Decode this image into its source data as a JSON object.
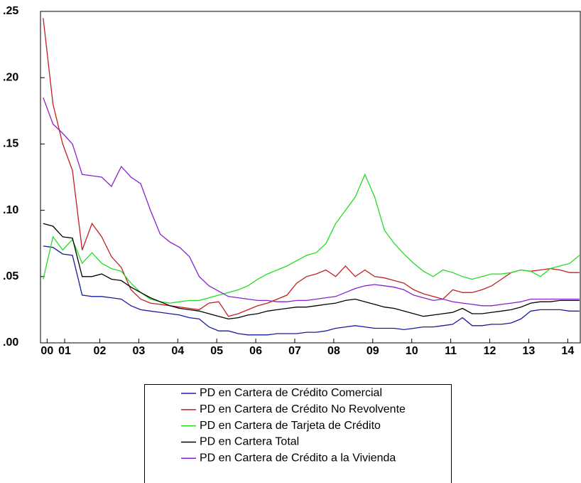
{
  "chart_data": {
    "type": "line",
    "x": [
      2001.0,
      2001.25,
      2001.5,
      2001.75,
      2002.0,
      2002.25,
      2002.5,
      2002.75,
      2003.0,
      2003.25,
      2003.5,
      2003.75,
      2004.0,
      2004.25,
      2004.5,
      2004.75,
      2005.0,
      2005.25,
      2005.5,
      2005.75,
      2006.0,
      2006.25,
      2006.5,
      2006.75,
      2007.0,
      2007.25,
      2007.5,
      2007.75,
      2008.0,
      2008.25,
      2008.5,
      2008.75,
      2009.0,
      2009.25,
      2009.5,
      2009.75,
      2010.0,
      2010.25,
      2010.5,
      2010.75,
      2011.0,
      2011.25,
      2011.5,
      2011.75,
      2012.0,
      2012.25,
      2012.5,
      2012.75,
      2013.0,
      2013.25,
      2013.5,
      2013.75,
      2014.0,
      2014.25,
      2014.5,
      2014.75
    ],
    "series": [
      {
        "name": "PD en Cartera de Crédito Comercial",
        "color": "#1a1aa0",
        "values": [
          0.073,
          0.072,
          0.067,
          0.066,
          0.036,
          0.035,
          0.035,
          0.034,
          0.033,
          0.028,
          0.025,
          0.024,
          0.023,
          0.022,
          0.021,
          0.019,
          0.018,
          0.012,
          0.009,
          0.009,
          0.007,
          0.006,
          0.006,
          0.006,
          0.007,
          0.007,
          0.007,
          0.008,
          0.008,
          0.009,
          0.011,
          0.012,
          0.013,
          0.012,
          0.011,
          0.011,
          0.011,
          0.01,
          0.011,
          0.012,
          0.012,
          0.013,
          0.014,
          0.019,
          0.013,
          0.013,
          0.014,
          0.014,
          0.015,
          0.018,
          0.024,
          0.025,
          0.025,
          0.025,
          0.024,
          0.024
        ]
      },
      {
        "name": "PD en Cartera de Crédito No Revolvente",
        "color": "#c02020",
        "values": [
          0.245,
          0.18,
          0.15,
          0.13,
          0.07,
          0.09,
          0.08,
          0.065,
          0.057,
          0.04,
          0.033,
          0.03,
          0.029,
          0.028,
          0.027,
          0.026,
          0.025,
          0.03,
          0.031,
          0.02,
          0.022,
          0.025,
          0.028,
          0.03,
          0.033,
          0.036,
          0.045,
          0.05,
          0.052,
          0.055,
          0.05,
          0.058,
          0.05,
          0.055,
          0.05,
          0.049,
          0.047,
          0.045,
          0.04,
          0.037,
          0.035,
          0.033,
          0.04,
          0.038,
          0.038,
          0.04,
          0.043,
          0.048,
          0.053,
          0.055,
          0.054,
          0.055,
          0.056,
          0.055,
          0.053,
          0.053
        ]
      },
      {
        "name": "PD en Cartera de Tarjeta de Crédito",
        "color": "#22dd22",
        "values": [
          0.048,
          0.08,
          0.07,
          0.078,
          0.06,
          0.068,
          0.06,
          0.056,
          0.054,
          0.045,
          0.038,
          0.033,
          0.031,
          0.03,
          0.031,
          0.032,
          0.032,
          0.034,
          0.036,
          0.038,
          0.04,
          0.043,
          0.048,
          0.052,
          0.055,
          0.058,
          0.062,
          0.066,
          0.068,
          0.075,
          0.09,
          0.1,
          0.11,
          0.127,
          0.11,
          0.085,
          0.075,
          0.067,
          0.06,
          0.054,
          0.05,
          0.055,
          0.053,
          0.05,
          0.048,
          0.05,
          0.052,
          0.052,
          0.053,
          0.055,
          0.054,
          0.05,
          0.056,
          0.058,
          0.06,
          0.066
        ]
      },
      {
        "name": "PD en Cartera Total",
        "color": "#000000",
        "values": [
          0.09,
          0.088,
          0.08,
          0.079,
          0.05,
          0.05,
          0.052,
          0.048,
          0.047,
          0.042,
          0.038,
          0.034,
          0.031,
          0.028,
          0.026,
          0.025,
          0.024,
          0.022,
          0.02,
          0.018,
          0.019,
          0.021,
          0.022,
          0.024,
          0.025,
          0.026,
          0.027,
          0.027,
          0.028,
          0.029,
          0.03,
          0.032,
          0.033,
          0.031,
          0.029,
          0.027,
          0.026,
          0.024,
          0.022,
          0.02,
          0.021,
          0.022,
          0.023,
          0.026,
          0.022,
          0.022,
          0.023,
          0.024,
          0.025,
          0.027,
          0.03,
          0.031,
          0.031,
          0.032,
          0.032,
          0.032
        ]
      },
      {
        "name": "PD en Cartera de Crédito a la Vivienda",
        "color": "#8822cc",
        "values": [
          0.185,
          0.165,
          0.158,
          0.15,
          0.127,
          0.126,
          0.125,
          0.118,
          0.133,
          0.125,
          0.12,
          0.1,
          0.082,
          0.076,
          0.072,
          0.065,
          0.05,
          0.043,
          0.039,
          0.035,
          0.034,
          0.033,
          0.032,
          0.032,
          0.031,
          0.031,
          0.032,
          0.032,
          0.033,
          0.034,
          0.035,
          0.038,
          0.041,
          0.043,
          0.044,
          0.043,
          0.042,
          0.04,
          0.036,
          0.034,
          0.032,
          0.033,
          0.031,
          0.03,
          0.029,
          0.028,
          0.028,
          0.029,
          0.03,
          0.031,
          0.033,
          0.033,
          0.033,
          0.033,
          0.033,
          0.033
        ]
      }
    ],
    "xlim": [
      2000.93,
      2014.79
    ],
    "xticks": [
      {
        "value": 2001.1,
        "label": "00"
      },
      {
        "value": 2001.55,
        "label": "01"
      },
      {
        "value": 2002.45,
        "label": "02"
      },
      {
        "value": 2003.45,
        "label": "03"
      },
      {
        "value": 2004.45,
        "label": "04"
      },
      {
        "value": 2005.45,
        "label": "05"
      },
      {
        "value": 2006.45,
        "label": "06"
      },
      {
        "value": 2007.45,
        "label": "07"
      },
      {
        "value": 2008.45,
        "label": "08"
      },
      {
        "value": 2009.45,
        "label": "09"
      },
      {
        "value": 2010.45,
        "label": "10"
      },
      {
        "value": 2011.45,
        "label": "11"
      },
      {
        "value": 2012.45,
        "label": "12"
      },
      {
        "value": 2013.45,
        "label": "13"
      },
      {
        "value": 2014.45,
        "label": "14"
      }
    ],
    "ylim": [
      0,
      0.25
    ],
    "yticks": [
      {
        "value": 0,
        "label": ".00"
      },
      {
        "value": 0.05,
        "label": ".05"
      },
      {
        "value": 0.1,
        "label": ".10"
      },
      {
        "value": 0.15,
        "label": ".15"
      },
      {
        "value": 0.2,
        "label": ".20"
      },
      {
        "value": 0.25,
        "label": ".25"
      }
    ],
    "legend": "bottom"
  }
}
